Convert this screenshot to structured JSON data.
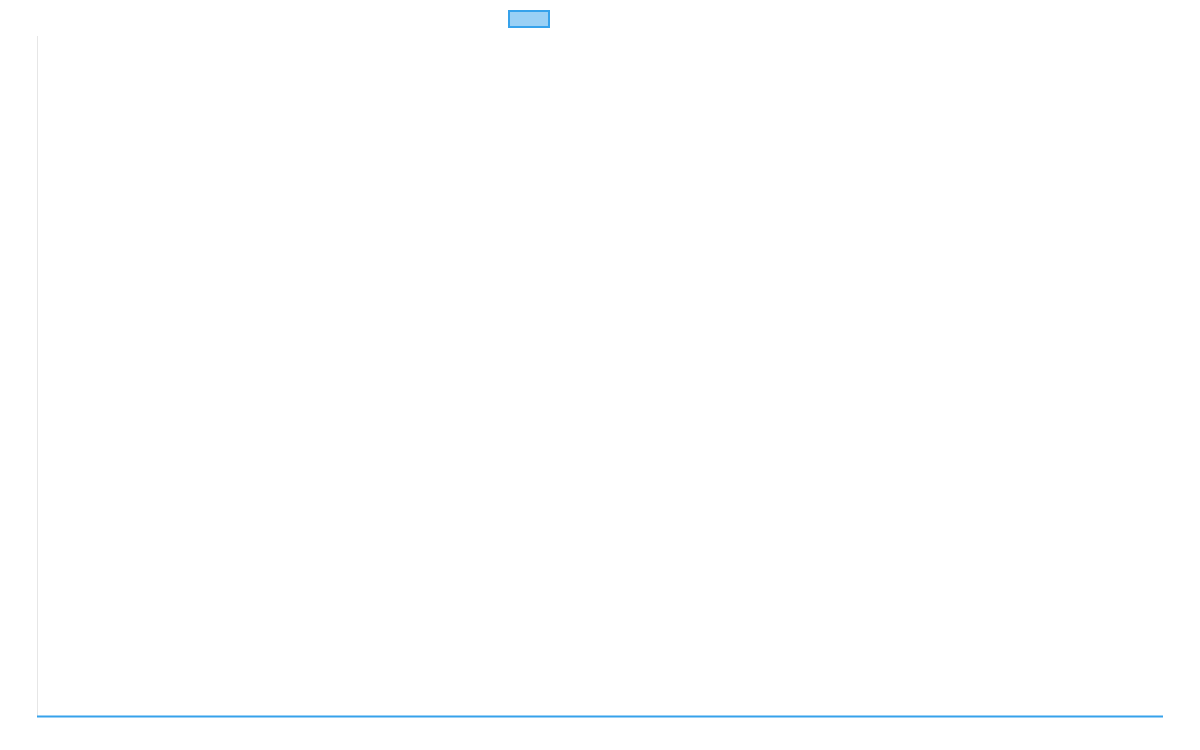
{
  "chart_data": {
    "type": "line",
    "title": "",
    "xlabel": "",
    "ylabel": "",
    "categories": [],
    "series": [
      {
        "values": [],
        "color": "#36a2eb",
        "fill": "#9ad0f5"
      }
    ],
    "grid": false,
    "legend": "top-center"
  }
}
